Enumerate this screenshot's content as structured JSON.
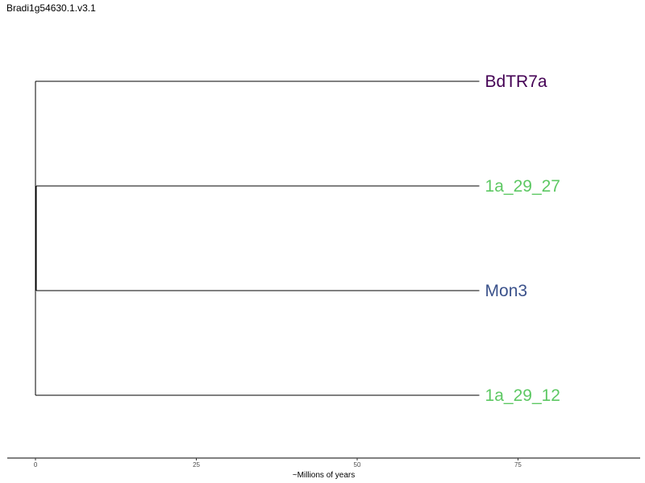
{
  "title": "Bradi1g54630.1.v3.1",
  "chart_data": {
    "type": "dendrogram",
    "title": "Bradi1g54630.1.v3.1",
    "xlabel": "~Millions of years",
    "ylabel": "",
    "xlim": [
      -4.4,
      94
    ],
    "x_ticks": [
      0,
      25,
      50,
      75
    ],
    "grid": false,
    "root_x": 0,
    "tips": [
      {
        "label": "BdTR7a",
        "x": 69,
        "color": "#440154"
      },
      {
        "label": "1a_29_27",
        "x": 69,
        "color": "#5DC863"
      },
      {
        "label": "Mon3",
        "x": 69,
        "color": "#3B528B"
      },
      {
        "label": "1a_29_12",
        "x": 69,
        "color": "#5DC863"
      }
    ],
    "internal_nodes": [
      {
        "x": 0.1,
        "children": [
          "1a_29_27",
          "Mon3"
        ]
      },
      {
        "x": 0.05,
        "children": [
          "BdTR7a",
          "node_1_merge",
          "1a_29_12"
        ]
      }
    ]
  }
}
